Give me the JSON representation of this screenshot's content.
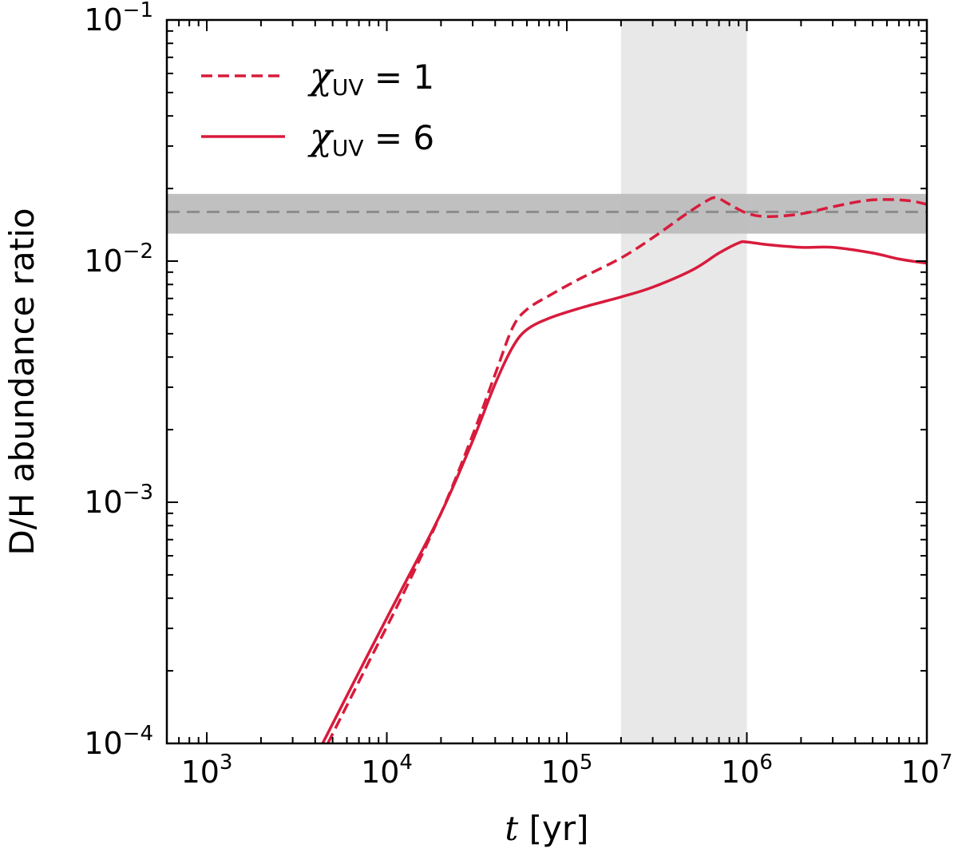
{
  "chart_data": {
    "type": "line",
    "xscale": "log",
    "yscale": "log",
    "xlim": [
      600,
      10000000
    ],
    "ylim": [
      0.0001,
      0.1
    ],
    "xlabel": {
      "var": "t",
      "rest": " [yr]"
    },
    "ylabel": "D/H abundance ratio",
    "x_ticks": [
      {
        "value": 1000,
        "base": "10",
        "exp": "3"
      },
      {
        "value": 10000,
        "base": "10",
        "exp": "4"
      },
      {
        "value": 100000,
        "base": "10",
        "exp": "5"
      },
      {
        "value": 1000000,
        "base": "10",
        "exp": "6"
      },
      {
        "value": 10000000,
        "base": "10",
        "exp": "7"
      }
    ],
    "y_ticks": [
      {
        "value": 0.0001,
        "base": "10",
        "exp": "−4"
      },
      {
        "value": 0.001,
        "base": "10",
        "exp": "−3"
      },
      {
        "value": 0.01,
        "base": "10",
        "exp": "−2"
      },
      {
        "value": 0.1,
        "base": "10",
        "exp": "−1"
      }
    ],
    "grid": false,
    "legend_position": "top-left",
    "shaded_time_range": {
      "x": [
        200000,
        1000000
      ],
      "color": "#e8e8e8"
    },
    "observed_band": {
      "y": [
        0.013,
        0.019
      ],
      "center": 0.016,
      "color": "#bdbdbd",
      "line_color": "#8c8c8c"
    },
    "series": [
      {
        "name_symbol": "χ",
        "name_sub": "UV",
        "name_rest": " = 1",
        "style": "dashed",
        "color": "#d81b3c",
        "points": [
          [
            4700,
            0.0001
          ],
          [
            8000,
            0.00022
          ],
          [
            12000,
            0.0004
          ],
          [
            20000,
            0.0009
          ],
          [
            30000,
            0.0019
          ],
          [
            40000,
            0.0034
          ],
          [
            50000,
            0.0053
          ],
          [
            60000,
            0.0063
          ],
          [
            80000,
            0.0072
          ],
          [
            120000,
            0.0085
          ],
          [
            200000,
            0.0103
          ],
          [
            300000,
            0.0125
          ],
          [
            450000,
            0.0155
          ],
          [
            600000,
            0.0178
          ],
          [
            680000,
            0.0183
          ],
          [
            800000,
            0.0172
          ],
          [
            1000000,
            0.0158
          ],
          [
            1300000,
            0.0153
          ],
          [
            2000000,
            0.0157
          ],
          [
            3000000,
            0.0168
          ],
          [
            4500000,
            0.0178
          ],
          [
            6000000,
            0.018
          ],
          [
            8000000,
            0.0178
          ],
          [
            10000000,
            0.0172
          ]
        ]
      },
      {
        "name_symbol": "χ",
        "name_sub": "UV",
        "name_rest": " = 6",
        "style": "solid",
        "color": "#d81b3c",
        "points": [
          [
            4400,
            0.0001
          ],
          [
            8000,
            0.00024
          ],
          [
            12000,
            0.00043
          ],
          [
            20000,
            0.0009
          ],
          [
            30000,
            0.0018
          ],
          [
            40000,
            0.0031
          ],
          [
            50000,
            0.0044
          ],
          [
            60000,
            0.0052
          ],
          [
            80000,
            0.0058
          ],
          [
            120000,
            0.0064
          ],
          [
            200000,
            0.0071
          ],
          [
            300000,
            0.0078
          ],
          [
            500000,
            0.0092
          ],
          [
            700000,
            0.0108
          ],
          [
            900000,
            0.0119
          ],
          [
            1000000,
            0.012
          ],
          [
            1300000,
            0.0117
          ],
          [
            2000000,
            0.0114
          ],
          [
            3000000,
            0.0114
          ],
          [
            5000000,
            0.0108
          ],
          [
            7000000,
            0.0102
          ],
          [
            10000000,
            0.0098
          ]
        ]
      }
    ]
  }
}
